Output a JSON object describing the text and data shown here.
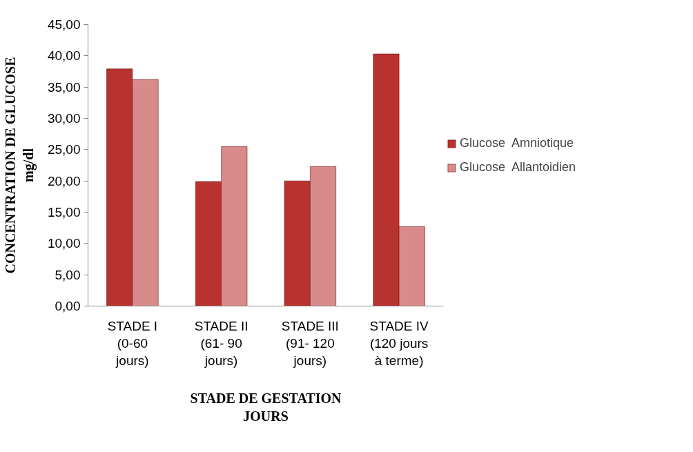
{
  "chart_data": {
    "type": "bar",
    "xlabel": "STADE DE GESTATION JOURS",
    "ylabel": "CONCENTRATION DE GLUCOSE mg/dl",
    "categories": [
      "STADE I (0-60 jours)",
      "STADE II (61- 90 jours)",
      "STADE III (91- 120 jours)",
      "STADE IV (120 jours à terme)"
    ],
    "series": [
      {
        "name": "Glucose  Amniotique",
        "color": "#b83230",
        "values": [
          37.9,
          19.9,
          20.0,
          40.3
        ]
      },
      {
        "name": "Glucose  Allantoidien",
        "color": "#d98b8b",
        "values": [
          36.2,
          25.5,
          22.3,
          12.7
        ]
      }
    ],
    "ylim": [
      0,
      45
    ],
    "yticks": [
      {
        "value": 0,
        "label": "0,00"
      },
      {
        "value": 5,
        "label": "5,00"
      },
      {
        "value": 10,
        "label": "10,00"
      },
      {
        "value": 15,
        "label": "15,00"
      },
      {
        "value": 20,
        "label": "20,00"
      },
      {
        "value": 25,
        "label": "25,00"
      },
      {
        "value": 30,
        "label": "30,00"
      },
      {
        "value": 35,
        "label": "35,00"
      },
      {
        "value": 40,
        "label": "40,00"
      },
      {
        "value": 45,
        "label": "45,00"
      }
    ],
    "grid": false,
    "legend": "right"
  }
}
